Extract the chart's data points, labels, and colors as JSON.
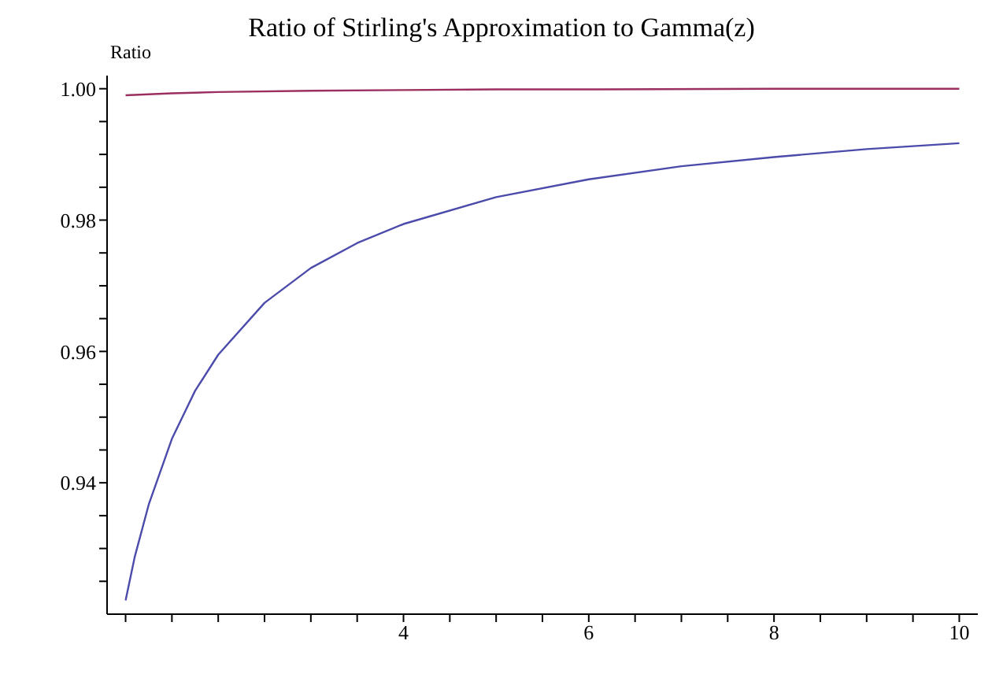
{
  "chart_data": {
    "type": "line",
    "title": "Ratio of Stirling's Approximation to Gamma(z)",
    "ylabel": "Ratio",
    "xlim": [
      0.8,
      10.2
    ],
    "ylim": [
      0.92,
      1.002
    ],
    "xticks": [
      {
        "value": 1,
        "label": null
      },
      {
        "value": 1.5,
        "label": null
      },
      {
        "value": 2,
        "label": null
      },
      {
        "value": 2.5,
        "label": null
      },
      {
        "value": 3,
        "label": null
      },
      {
        "value": 3.5,
        "label": null
      },
      4,
      {
        "value": 4.5,
        "label": null
      },
      {
        "value": 5,
        "label": null
      },
      {
        "value": 5.5,
        "label": null
      },
      6,
      {
        "value": 6.5,
        "label": null
      },
      {
        "value": 7,
        "label": null
      },
      {
        "value": 7.5,
        "label": null
      },
      8,
      {
        "value": 8.5,
        "label": null
      },
      {
        "value": 9,
        "label": null
      },
      {
        "value": 9.5,
        "label": null
      },
      10
    ],
    "yticks": [
      {
        "value": 0.925,
        "label": null
      },
      {
        "value": 0.93,
        "label": null
      },
      {
        "value": 0.935,
        "label": null
      },
      0.94,
      {
        "value": 0.945,
        "label": null
      },
      {
        "value": 0.95,
        "label": null
      },
      {
        "value": 0.955,
        "label": null
      },
      0.96,
      {
        "value": 0.965,
        "label": null
      },
      {
        "value": 0.97,
        "label": null
      },
      {
        "value": 0.975,
        "label": null
      },
      0.98,
      {
        "value": 0.985,
        "label": null
      },
      {
        "value": 0.99,
        "label": null
      },
      {
        "value": 0.995,
        "label": null
      },
      {
        "value": 1,
        "label": "1.00"
      }
    ],
    "grid": false,
    "legend": false,
    "marker": "none",
    "line_style": "solid",
    "series": [
      {
        "color": "#4b4bab",
        "x": [
          1,
          1.1,
          1.25,
          1.5,
          1.75,
          2,
          2.5,
          3,
          3.5,
          4,
          5,
          6,
          7,
          8,
          9,
          10
        ],
        "values": [
          0.9221,
          0.9288,
          0.9367,
          0.9467,
          0.954,
          0.9595,
          0.9674,
          0.9727,
          0.9765,
          0.9794,
          0.9835,
          0.9862,
          0.9882,
          0.9896,
          0.9908,
          0.9917
        ]
      },
      {
        "color": "#9b2f5f",
        "x": [
          1,
          1.5,
          2,
          3,
          4,
          5,
          6,
          8,
          10
        ],
        "values": [
          0.999,
          0.9993,
          0.9995,
          0.9997,
          0.9998,
          0.9999,
          0.9999,
          1.0,
          1.0
        ]
      }
    ]
  }
}
